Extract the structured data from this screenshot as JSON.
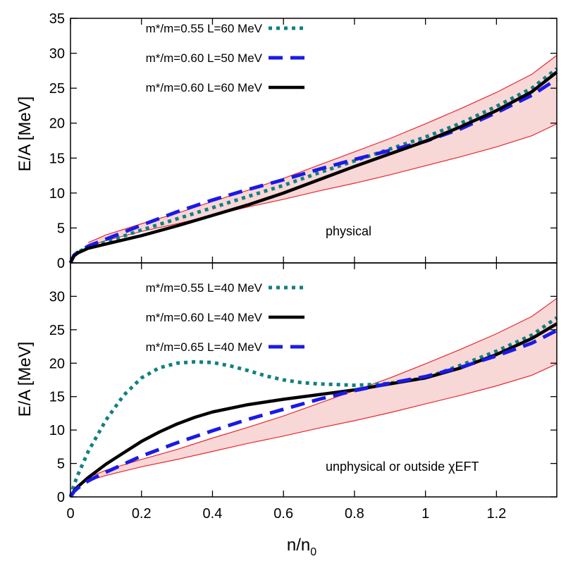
{
  "chart_data": [
    {
      "type": "line",
      "panel": "top",
      "xlabel": "",
      "ylabel": "E/A [MeV]",
      "xlim": [
        0,
        1.37
      ],
      "ylim": [
        0,
        35
      ],
      "yticks": [
        0,
        5,
        10,
        15,
        20,
        25,
        30,
        35
      ],
      "xticks": [
        0,
        0.2,
        0.4,
        0.6,
        0.8,
        1,
        1.2
      ],
      "legend_position": "top-left",
      "annotation": "physical",
      "band": {
        "color": "#f8d7d7",
        "edge_color": "#e8282d",
        "x": [
          0.05,
          0.1,
          0.2,
          0.3,
          0.4,
          0.5,
          0.6,
          0.7,
          0.8,
          0.9,
          1.0,
          1.1,
          1.2,
          1.3,
          1.37
        ],
        "upper": [
          2.9,
          4.0,
          5.6,
          7.1,
          8.8,
          10.4,
          12.1,
          14.0,
          15.9,
          17.8,
          19.9,
          22.1,
          24.4,
          27.0,
          29.7
        ],
        "lower": [
          2.4,
          3.2,
          4.5,
          5.6,
          6.8,
          8.0,
          9.1,
          10.3,
          11.4,
          12.6,
          13.9,
          15.2,
          16.6,
          18.2,
          19.9
        ]
      },
      "series": [
        {
          "name": "m*/m=0.55 L=60 MeV",
          "color": "#128080",
          "style": "dotted",
          "x": [
            0,
            0.01,
            0.02,
            0.05,
            0.1,
            0.2,
            0.3,
            0.4,
            0.5,
            0.6,
            0.7,
            0.8,
            0.9,
            1.0,
            1.1,
            1.2,
            1.3,
            1.37
          ],
          "y": [
            0,
            1.1,
            1.5,
            2.3,
            3.0,
            4.7,
            6.3,
            7.9,
            9.5,
            11.1,
            12.9,
            14.6,
            16.3,
            18.0,
            20.0,
            22.4,
            25.0,
            27.8
          ]
        },
        {
          "name": "m*/m=0.60 L=50 MeV",
          "color": "#1a1ae6",
          "style": "dashed",
          "x": [
            0,
            0.01,
            0.02,
            0.05,
            0.1,
            0.2,
            0.3,
            0.4,
            0.5,
            0.6,
            0.7,
            0.8,
            0.9,
            1.0,
            1.1,
            1.2,
            1.3,
            1.37
          ],
          "y": [
            0,
            1.1,
            1.5,
            2.4,
            3.4,
            5.4,
            7.3,
            9.0,
            10.5,
            11.9,
            13.4,
            14.8,
            16.1,
            17.4,
            19.2,
            21.5,
            24.0,
            26.3
          ]
        },
        {
          "name": "m*/m=0.60 L=60 MeV",
          "color": "#000000",
          "style": "solid",
          "x": [
            0,
            0.01,
            0.02,
            0.05,
            0.1,
            0.2,
            0.3,
            0.4,
            0.5,
            0.6,
            0.7,
            0.8,
            0.9,
            1.0,
            1.1,
            1.2,
            1.3,
            1.37
          ],
          "y": [
            0,
            1.0,
            1.4,
            2.1,
            2.7,
            3.9,
            5.3,
            6.8,
            8.3,
            10.0,
            11.9,
            13.8,
            15.6,
            17.4,
            19.5,
            21.8,
            24.5,
            27.3
          ]
        }
      ]
    },
    {
      "type": "line",
      "panel": "bottom",
      "xlabel": "n/n",
      "xlabel_sub": "0",
      "ylabel": "E/A [MeV]",
      "xlim": [
        0,
        1.37
      ],
      "ylim": [
        0,
        35
      ],
      "yticks": [
        0,
        5,
        10,
        15,
        20,
        25,
        30
      ],
      "xticks": [
        0,
        0.2,
        0.4,
        0.6,
        0.8,
        1,
        1.2
      ],
      "xtick_labels": [
        "0",
        "0.2",
        "0.4",
        "0.6",
        "0.8",
        "1",
        "1.2"
      ],
      "legend_position": "top-left",
      "annotation": "unphysical or outside χEFT",
      "band": {
        "color": "#f8d7d7",
        "edge_color": "#e8282d",
        "x": [
          0.05,
          0.1,
          0.2,
          0.3,
          0.4,
          0.5,
          0.6,
          0.7,
          0.8,
          0.9,
          1.0,
          1.1,
          1.2,
          1.3,
          1.37
        ],
        "upper": [
          2.9,
          4.0,
          5.6,
          7.1,
          8.8,
          10.4,
          12.1,
          14.0,
          15.9,
          17.8,
          19.9,
          22.1,
          24.4,
          27.0,
          29.7
        ],
        "lower": [
          2.4,
          3.2,
          4.5,
          5.6,
          6.8,
          8.0,
          9.1,
          10.3,
          11.4,
          12.6,
          13.9,
          15.2,
          16.6,
          18.2,
          19.9
        ]
      },
      "series": [
        {
          "name": "m*/m=0.55 L=40 MeV",
          "color": "#128080",
          "style": "dotted",
          "x": [
            0,
            0.01,
            0.02,
            0.05,
            0.1,
            0.15,
            0.2,
            0.25,
            0.3,
            0.35,
            0.4,
            0.45,
            0.5,
            0.55,
            0.6,
            0.65,
            0.7,
            0.75,
            0.8,
            0.85,
            0.9,
            1.0,
            1.1,
            1.2,
            1.3,
            1.37
          ],
          "y": [
            0,
            1.8,
            3.2,
            6.8,
            11.5,
            15.2,
            17.8,
            19.3,
            20.0,
            20.2,
            20.1,
            19.6,
            18.9,
            18.1,
            17.5,
            17.1,
            16.9,
            16.8,
            16.7,
            16.8,
            17.0,
            17.8,
            19.7,
            21.8,
            24.2,
            26.8
          ]
        },
        {
          "name": "m*/m=0.60 L=40 MeV",
          "color": "#000000",
          "style": "solid",
          "x": [
            0,
            0.01,
            0.02,
            0.05,
            0.1,
            0.15,
            0.2,
            0.25,
            0.3,
            0.35,
            0.4,
            0.5,
            0.6,
            0.7,
            0.8,
            0.9,
            1.0,
            1.1,
            1.2,
            1.3,
            1.37
          ],
          "y": [
            0,
            0.9,
            1.5,
            2.9,
            4.9,
            6.6,
            8.3,
            9.7,
            10.9,
            11.9,
            12.7,
            13.8,
            14.6,
            15.3,
            16.0,
            16.9,
            17.8,
            19.3,
            21.3,
            23.7,
            25.9
          ]
        },
        {
          "name": "m*/m=0.65 L=40 MeV",
          "color": "#1a1ae6",
          "style": "dashed",
          "x": [
            0,
            0.01,
            0.02,
            0.05,
            0.1,
            0.15,
            0.2,
            0.3,
            0.4,
            0.5,
            0.6,
            0.7,
            0.8,
            0.9,
            1.0,
            1.1,
            1.2,
            1.3,
            1.37
          ],
          "y": [
            0,
            0.8,
            1.3,
            2.4,
            3.7,
            4.9,
            6.1,
            8.1,
            9.9,
            11.6,
            13.1,
            14.6,
            15.9,
            17.0,
            18.0,
            19.4,
            21.1,
            23.0,
            24.9
          ]
        }
      ]
    }
  ]
}
